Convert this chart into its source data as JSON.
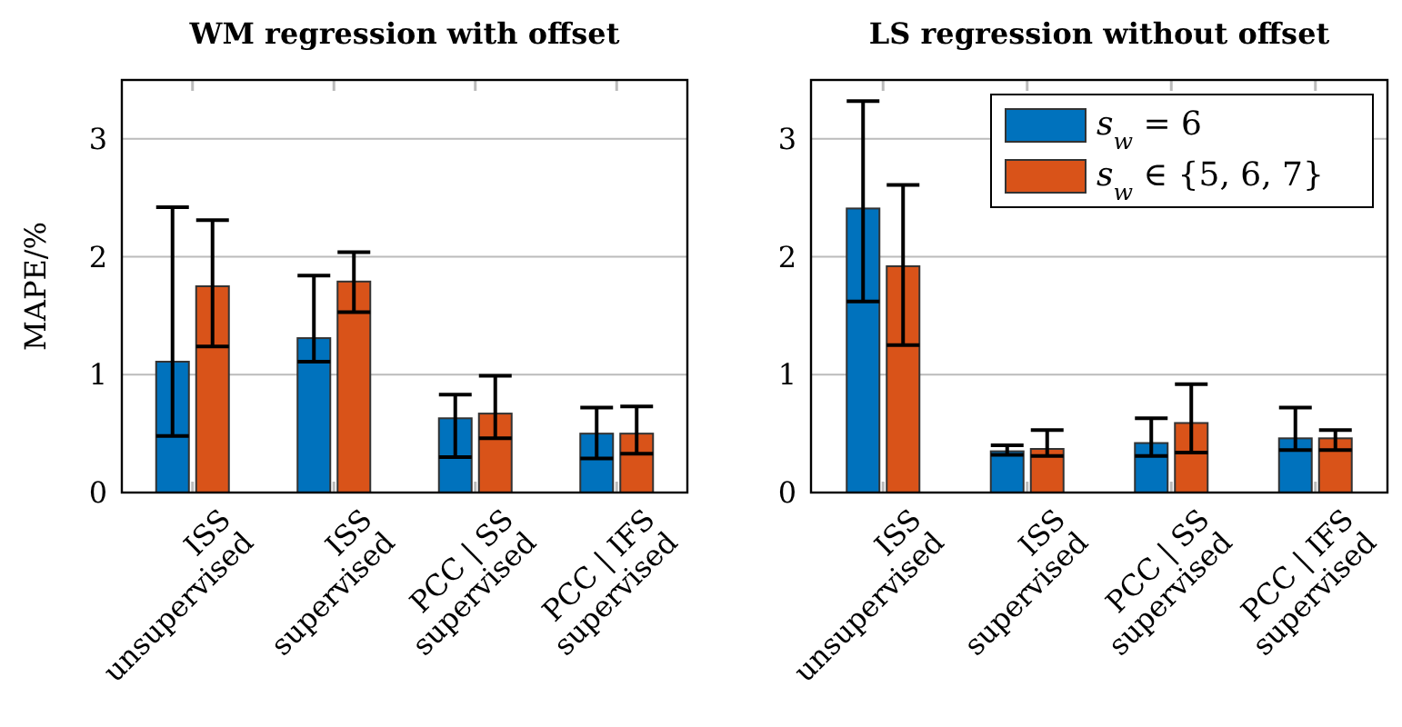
{
  "chart_data": [
    {
      "type": "bar",
      "title": "WM regression with offset",
      "ylabel": "MAPE/%",
      "categories": [
        "ISS\nunsupervised",
        "ISS\nsupervised",
        "PCC | SS\nsupervised",
        "PCC | IFS\nsupervised"
      ],
      "series": [
        {
          "color": "#0072bd",
          "values": [
            1.11,
            1.31,
            0.63,
            0.5
          ],
          "errors": [
            [
              0.48,
              2.42
            ],
            [
              1.11,
              1.84
            ],
            [
              0.3,
              0.83
            ],
            [
              0.29,
              0.72
            ]
          ]
        },
        {
          "color": "#d95319",
          "values": [
            1.75,
            1.79,
            0.67,
            0.5
          ],
          "errors": [
            [
              1.24,
              2.31
            ],
            [
              1.53,
              2.04
            ],
            [
              0.46,
              0.99
            ],
            [
              0.33,
              0.73
            ]
          ]
        }
      ],
      "ylim": [
        0,
        3.5
      ],
      "yticks": [
        0,
        1,
        2,
        3
      ],
      "grid": "y",
      "legend": false
    },
    {
      "type": "bar",
      "title": "LS regression without offset",
      "categories": [
        "ISS\nunsupervised",
        "ISS\nsupervised",
        "PCC | SS\nsupervised",
        "PCC | IFS\nsupervised"
      ],
      "series": [
        {
          "name": "s$_{w}$ = 6",
          "color": "#0072bd",
          "values": [
            2.41,
            0.35,
            0.42,
            0.46
          ],
          "errors": [
            [
              1.62,
              3.32
            ],
            [
              0.32,
              0.4
            ],
            [
              0.31,
              0.63
            ],
            [
              0.36,
              0.72
            ]
          ]
        },
        {
          "name": "s$_{w}$ ∈ {5, 6, 7}",
          "color": "#d95319",
          "values": [
            1.92,
            0.37,
            0.59,
            0.46
          ],
          "errors": [
            [
              1.25,
              2.61
            ],
            [
              0.31,
              0.53
            ],
            [
              0.34,
              0.92
            ],
            [
              0.36,
              0.53
            ]
          ]
        }
      ],
      "ylim": [
        0,
        3.5
      ],
      "yticks": [
        0,
        1,
        2,
        3
      ],
      "grid": "y",
      "legend": "top right"
    }
  ]
}
